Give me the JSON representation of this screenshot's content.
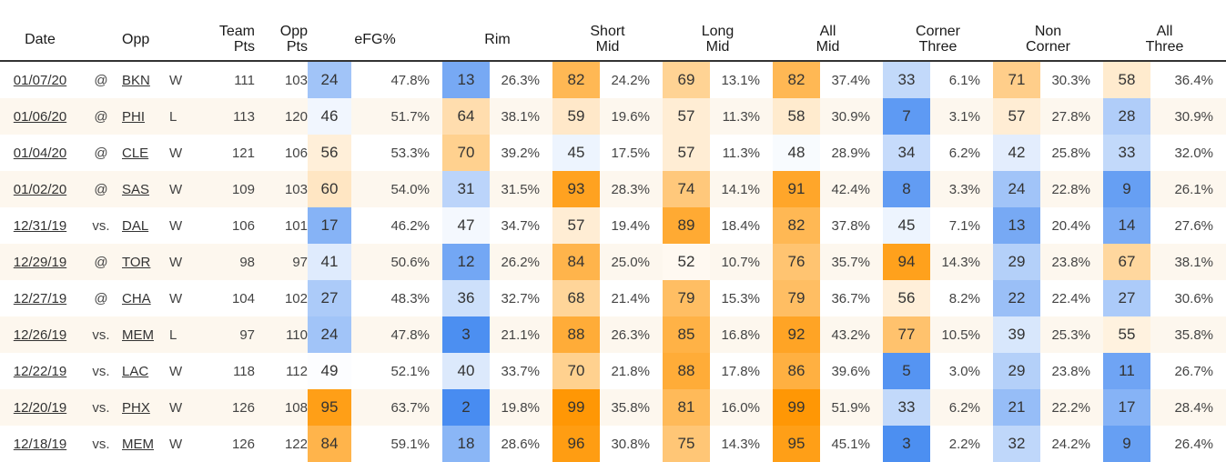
{
  "headers": {
    "date": "Date",
    "opp": "Opp",
    "team_pts": [
      "Team",
      "Pts"
    ],
    "opp_pts": [
      "Opp",
      "Pts"
    ],
    "efg": "eFG%",
    "rim": "Rim",
    "short_mid": [
      "Short",
      "Mid"
    ],
    "long_mid": [
      "Long",
      "Mid"
    ],
    "all_mid": [
      "All",
      "Mid"
    ],
    "corner_three": [
      "Corner",
      "Three"
    ],
    "non_corner": [
      "Non",
      "Corner"
    ],
    "all_three": [
      "All",
      "Three"
    ]
  },
  "rows": [
    {
      "date": "01/07/20",
      "loc": "@",
      "opp": "BKN",
      "res": "W",
      "tp": "111",
      "op": "103",
      "efg_r": "24",
      "efg_p": "47.8%",
      "rim_r": "13",
      "rim_p": "26.3%",
      "sm_r": "82",
      "sm_p": "24.2%",
      "lm_r": "69",
      "lm_p": "13.1%",
      "am_r": "82",
      "am_p": "37.4%",
      "ct_r": "33",
      "ct_p": "6.1%",
      "nc_r": "71",
      "nc_p": "30.3%",
      "at_r": "58",
      "at_p": "36.4%"
    },
    {
      "date": "01/06/20",
      "loc": "@",
      "opp": "PHI",
      "res": "L",
      "tp": "113",
      "op": "120",
      "efg_r": "46",
      "efg_p": "51.7%",
      "rim_r": "64",
      "rim_p": "38.1%",
      "sm_r": "59",
      "sm_p": "19.6%",
      "lm_r": "57",
      "lm_p": "11.3%",
      "am_r": "58",
      "am_p": "30.9%",
      "ct_r": "7",
      "ct_p": "3.1%",
      "nc_r": "57",
      "nc_p": "27.8%",
      "at_r": "28",
      "at_p": "30.9%"
    },
    {
      "date": "01/04/20",
      "loc": "@",
      "opp": "CLE",
      "res": "W",
      "tp": "121",
      "op": "106",
      "efg_r": "56",
      "efg_p": "53.3%",
      "rim_r": "70",
      "rim_p": "39.2%",
      "sm_r": "45",
      "sm_p": "17.5%",
      "lm_r": "57",
      "lm_p": "11.3%",
      "am_r": "48",
      "am_p": "28.9%",
      "ct_r": "34",
      "ct_p": "6.2%",
      "nc_r": "42",
      "nc_p": "25.8%",
      "at_r": "33",
      "at_p": "32.0%"
    },
    {
      "date": "01/02/20",
      "loc": "@",
      "opp": "SAS",
      "res": "W",
      "tp": "109",
      "op": "103",
      "efg_r": "60",
      "efg_p": "54.0%",
      "rim_r": "31",
      "rim_p": "31.5%",
      "sm_r": "93",
      "sm_p": "28.3%",
      "lm_r": "74",
      "lm_p": "14.1%",
      "am_r": "91",
      "am_p": "42.4%",
      "ct_r": "8",
      "ct_p": "3.3%",
      "nc_r": "24",
      "nc_p": "22.8%",
      "at_r": "9",
      "at_p": "26.1%"
    },
    {
      "date": "12/31/19",
      "loc": "vs.",
      "opp": "DAL",
      "res": "W",
      "tp": "106",
      "op": "101",
      "efg_r": "17",
      "efg_p": "46.2%",
      "rim_r": "47",
      "rim_p": "34.7%",
      "sm_r": "57",
      "sm_p": "19.4%",
      "lm_r": "89",
      "lm_p": "18.4%",
      "am_r": "82",
      "am_p": "37.8%",
      "ct_r": "45",
      "ct_p": "7.1%",
      "nc_r": "13",
      "nc_p": "20.4%",
      "at_r": "14",
      "at_p": "27.6%"
    },
    {
      "date": "12/29/19",
      "loc": "@",
      "opp": "TOR",
      "res": "W",
      "tp": "98",
      "op": "97",
      "efg_r": "41",
      "efg_p": "50.6%",
      "rim_r": "12",
      "rim_p": "26.2%",
      "sm_r": "84",
      "sm_p": "25.0%",
      "lm_r": "52",
      "lm_p": "10.7%",
      "am_r": "76",
      "am_p": "35.7%",
      "ct_r": "94",
      "ct_p": "14.3%",
      "nc_r": "29",
      "nc_p": "23.8%",
      "at_r": "67",
      "at_p": "38.1%"
    },
    {
      "date": "12/27/19",
      "loc": "@",
      "opp": "CHA",
      "res": "W",
      "tp": "104",
      "op": "102",
      "efg_r": "27",
      "efg_p": "48.3%",
      "rim_r": "36",
      "rim_p": "32.7%",
      "sm_r": "68",
      "sm_p": "21.4%",
      "lm_r": "79",
      "lm_p": "15.3%",
      "am_r": "79",
      "am_p": "36.7%",
      "ct_r": "56",
      "ct_p": "8.2%",
      "nc_r": "22",
      "nc_p": "22.4%",
      "at_r": "27",
      "at_p": "30.6%"
    },
    {
      "date": "12/26/19",
      "loc": "vs.",
      "opp": "MEM",
      "res": "L",
      "tp": "97",
      "op": "110",
      "efg_r": "24",
      "efg_p": "47.8%",
      "rim_r": "3",
      "rim_p": "21.1%",
      "sm_r": "88",
      "sm_p": "26.3%",
      "lm_r": "85",
      "lm_p": "16.8%",
      "am_r": "92",
      "am_p": "43.2%",
      "ct_r": "77",
      "ct_p": "10.5%",
      "nc_r": "39",
      "nc_p": "25.3%",
      "at_r": "55",
      "at_p": "35.8%"
    },
    {
      "date": "12/22/19",
      "loc": "vs.",
      "opp": "LAC",
      "res": "W",
      "tp": "118",
      "op": "112",
      "efg_r": "49",
      "efg_p": "52.1%",
      "rim_r": "40",
      "rim_p": "33.7%",
      "sm_r": "70",
      "sm_p": "21.8%",
      "lm_r": "88",
      "lm_p": "17.8%",
      "am_r": "86",
      "am_p": "39.6%",
      "ct_r": "5",
      "ct_p": "3.0%",
      "nc_r": "29",
      "nc_p": "23.8%",
      "at_r": "11",
      "at_p": "26.7%"
    },
    {
      "date": "12/20/19",
      "loc": "vs.",
      "opp": "PHX",
      "res": "W",
      "tp": "126",
      "op": "108",
      "efg_r": "95",
      "efg_p": "63.7%",
      "rim_r": "2",
      "rim_p": "19.8%",
      "sm_r": "99",
      "sm_p": "35.8%",
      "lm_r": "81",
      "lm_p": "16.0%",
      "am_r": "99",
      "am_p": "51.9%",
      "ct_r": "33",
      "ct_p": "6.2%",
      "nc_r": "21",
      "nc_p": "22.2%",
      "at_r": "17",
      "at_p": "28.4%"
    },
    {
      "date": "12/18/19",
      "loc": "vs.",
      "opp": "MEM",
      "res": "W",
      "tp": "126",
      "op": "122",
      "efg_r": "84",
      "efg_p": "59.1%",
      "rim_r": "18",
      "rim_p": "28.6%",
      "sm_r": "96",
      "sm_p": "30.8%",
      "lm_r": "75",
      "lm_p": "14.3%",
      "am_r": "95",
      "am_p": "45.1%",
      "ct_r": "3",
      "ct_p": "2.2%",
      "nc_r": "32",
      "nc_p": "24.2%",
      "at_r": "9",
      "at_p": "26.4%"
    }
  ],
  "colors": {
    "low": "#3d85f0",
    "mid": "#ffffff",
    "high": "#ff9500",
    "header_rule": "#333333",
    "stripe": "#fdf7ee"
  }
}
